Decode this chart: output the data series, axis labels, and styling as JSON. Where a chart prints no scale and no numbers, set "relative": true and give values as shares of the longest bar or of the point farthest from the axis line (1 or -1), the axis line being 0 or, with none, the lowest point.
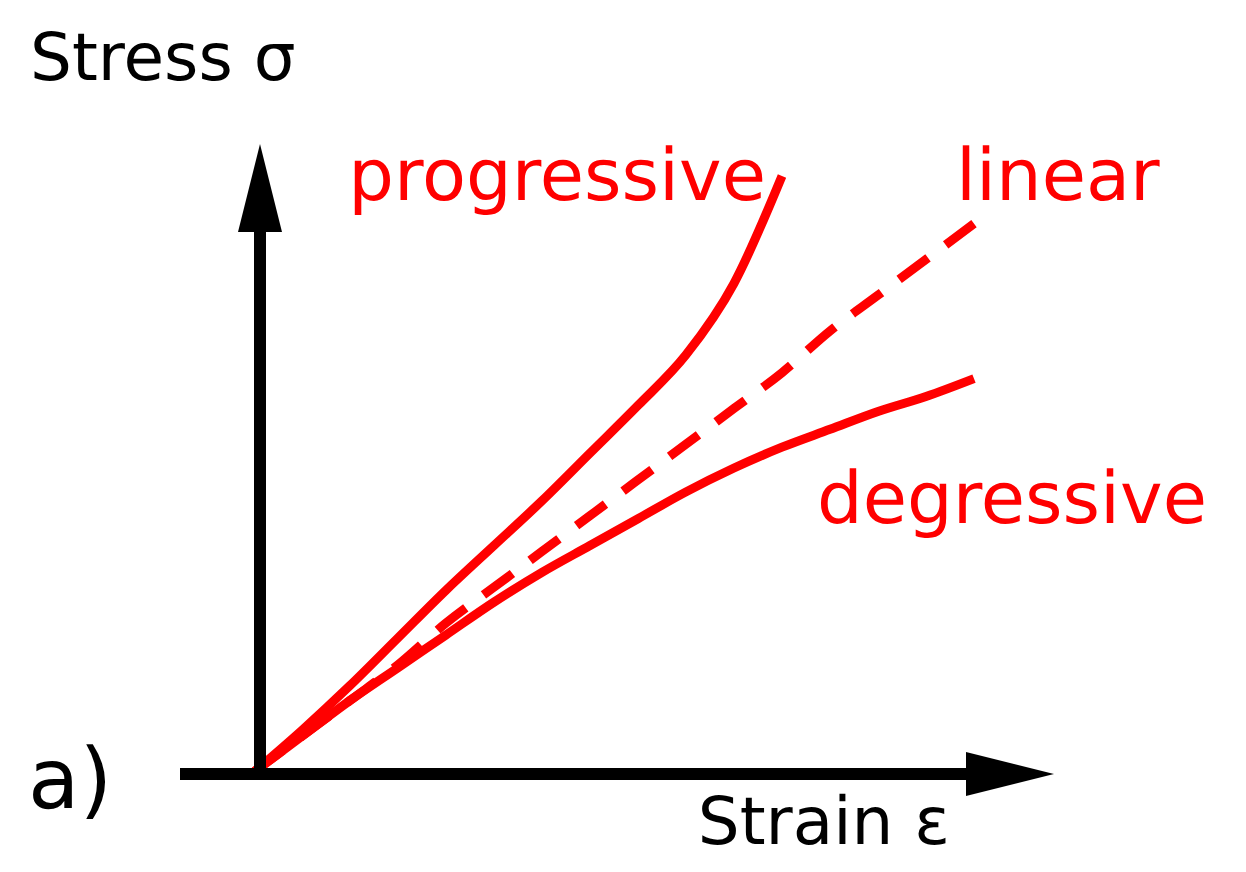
{
  "chart_data": {
    "type": "line",
    "relative": true,
    "xlabel": "Strain ε",
    "ylabel": "Stress σ",
    "annotations": [
      "a)"
    ],
    "categories": [
      null,
      null,
      null,
      null,
      null,
      null,
      null,
      null,
      null,
      null,
      null,
      null,
      null,
      null,
      null,
      null
    ],
    "series": [
      {
        "name": "progressive",
        "color": "#ff0000",
        "line_style": "solid",
        "values": [
          0,
          0.07,
          0.145,
          0.225,
          0.305,
          0.38,
          0.455,
          0.535,
          0.615,
          0.7,
          0.82,
          1,
          null,
          null,
          null,
          null
        ]
      },
      {
        "name": "linear",
        "color": "#ff0000",
        "line_style": "dashed",
        "values": [
          0,
          0.06,
          0.12,
          0.18,
          0.25,
          0.31,
          0.37,
          0.43,
          0.49,
          0.55,
          0.61,
          0.67,
          0.74,
          0.8,
          0.86,
          0.92
        ]
      },
      {
        "name": "degressive",
        "color": "#ff0000",
        "line_style": "solid",
        "values": [
          0,
          0.06,
          0.12,
          0.175,
          0.23,
          0.285,
          0.335,
          0.38,
          0.425,
          0.47,
          0.51,
          0.545,
          0.575,
          0.605,
          0.63,
          0.66
        ]
      }
    ]
  }
}
